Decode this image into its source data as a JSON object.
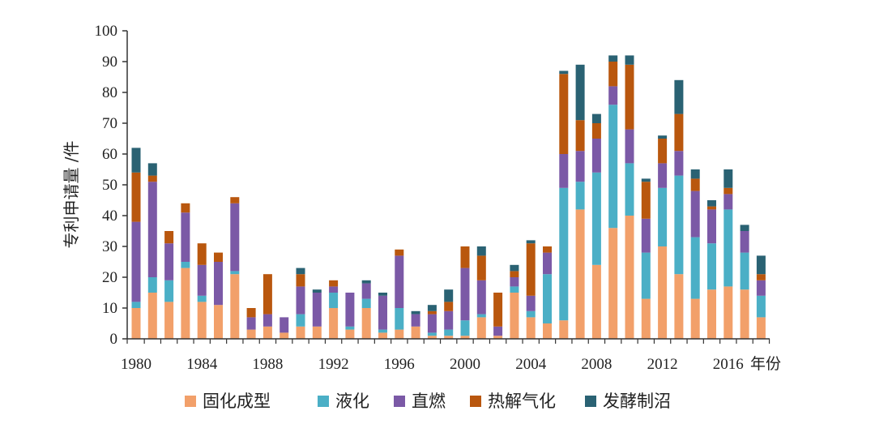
{
  "chart_data": {
    "type": "bar",
    "stacked": true,
    "ylabel": "专利申请量 /件",
    "xlabel": "年份",
    "ylim": [
      0,
      100
    ],
    "yticks": [
      0,
      10,
      20,
      30,
      40,
      50,
      60,
      70,
      80,
      90,
      100
    ],
    "xtick_labels": [
      "1980",
      "1984",
      "1988",
      "1992",
      "1996",
      "2000",
      "2004",
      "2008",
      "2012",
      "2016"
    ],
    "grid": false,
    "legend_position": "bottom",
    "categories": [
      "1980",
      "1981",
      "1982",
      "1983",
      "1984",
      "1985",
      "1986",
      "1987",
      "1988",
      "1989",
      "1990",
      "1991",
      "1992",
      "1993",
      "1994",
      "1995",
      "1996",
      "1997",
      "1998",
      "1999",
      "2000",
      "2001",
      "2002",
      "2003",
      "2004",
      "2005",
      "2006",
      "2007",
      "2008",
      "2009",
      "2010",
      "2011",
      "2012",
      "2013",
      "2014",
      "2015",
      "2016",
      "2017",
      "2018"
    ],
    "series": [
      {
        "name": "固化成型",
        "color": "#f2a06a",
        "values": [
          10,
          15,
          12,
          23,
          12,
          11,
          21,
          3,
          4,
          2,
          4,
          4,
          10,
          3,
          10,
          2,
          3,
          4,
          1,
          1,
          1,
          7,
          1,
          15,
          7,
          5,
          6,
          42,
          24,
          36,
          40,
          13,
          30,
          21,
          13,
          16,
          17,
          16,
          7
        ]
      },
      {
        "name": "液化",
        "color": "#4bafc6",
        "values": [
          2,
          5,
          7,
          2,
          2,
          0,
          1,
          0,
          0,
          0,
          4,
          0,
          5,
          1,
          3,
          1,
          7,
          0,
          1,
          2,
          5,
          1,
          0,
          2,
          2,
          16,
          43,
          9,
          30,
          40,
          17,
          15,
          19,
          32,
          20,
          15,
          25,
          12,
          7
        ]
      },
      {
        "name": "直燃",
        "color": "#7b59a6",
        "values": [
          26,
          31,
          12,
          16,
          10,
          14,
          22,
          4,
          4,
          5,
          9,
          11,
          2,
          11,
          5,
          11,
          17,
          4,
          6,
          6,
          17,
          11,
          3,
          3,
          5,
          7,
          11,
          10,
          11,
          6,
          11,
          11,
          8,
          8,
          15,
          11,
          5,
          7,
          5
        ]
      },
      {
        "name": "热解气化",
        "color": "#b9570e",
        "values": [
          16,
          2,
          4,
          3,
          7,
          3,
          2,
          3,
          13,
          0,
          4,
          0,
          2,
          0,
          0,
          0,
          2,
          0,
          1,
          3,
          7,
          8,
          11,
          2,
          17,
          2,
          26,
          10,
          5,
          8,
          21,
          12,
          8,
          12,
          4,
          1,
          2,
          0,
          2
        ]
      },
      {
        "name": "发酵制沼",
        "color": "#2a6273",
        "values": [
          8,
          4,
          0,
          0,
          0,
          0,
          0,
          0,
          0,
          0,
          2,
          1,
          0,
          0,
          1,
          1,
          0,
          1,
          2,
          4,
          0,
          3,
          0,
          2,
          1,
          0,
          1,
          18,
          3,
          2,
          3,
          1,
          1,
          11,
          3,
          2,
          6,
          2,
          6
        ]
      }
    ]
  }
}
